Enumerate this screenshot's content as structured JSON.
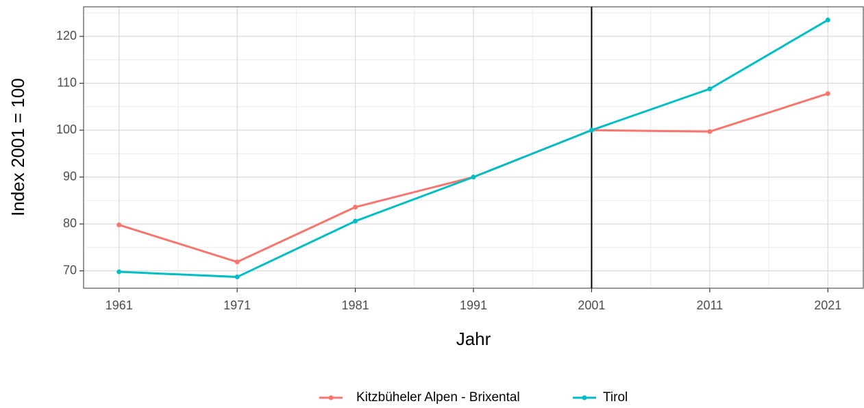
{
  "chart_data": {
    "type": "line",
    "x": [
      1961,
      1971,
      1981,
      1991,
      2001,
      2011,
      2021
    ],
    "series": [
      {
        "name": "Kitzbüheler Alpen - Brixental",
        "color": "#F8766D",
        "values": [
          79.8,
          71.9,
          83.6,
          90.0,
          100.0,
          99.7,
          107.8
        ]
      },
      {
        "name": "Tirol",
        "color": "#00BFC4",
        "values": [
          69.8,
          68.7,
          80.6,
          90.0,
          100.0,
          108.8,
          123.5
        ]
      }
    ],
    "xlabel": "Jahr",
    "ylabel": "Index 2001 = 100",
    "xlim": [
      1958,
      2024
    ],
    "xticks": [
      1961,
      1971,
      1981,
      1991,
      2001,
      2011,
      2021
    ],
    "xminor": [
      1966,
      1976,
      1986,
      1996,
      2006,
      2016
    ],
    "ylim": [
      66.3,
      126.3
    ],
    "yticks": [
      70,
      80,
      90,
      100,
      110,
      120
    ],
    "yminor": [
      75,
      85,
      95,
      105,
      115,
      125
    ],
    "vline": 2001,
    "grid": true,
    "legend": "bottom"
  }
}
